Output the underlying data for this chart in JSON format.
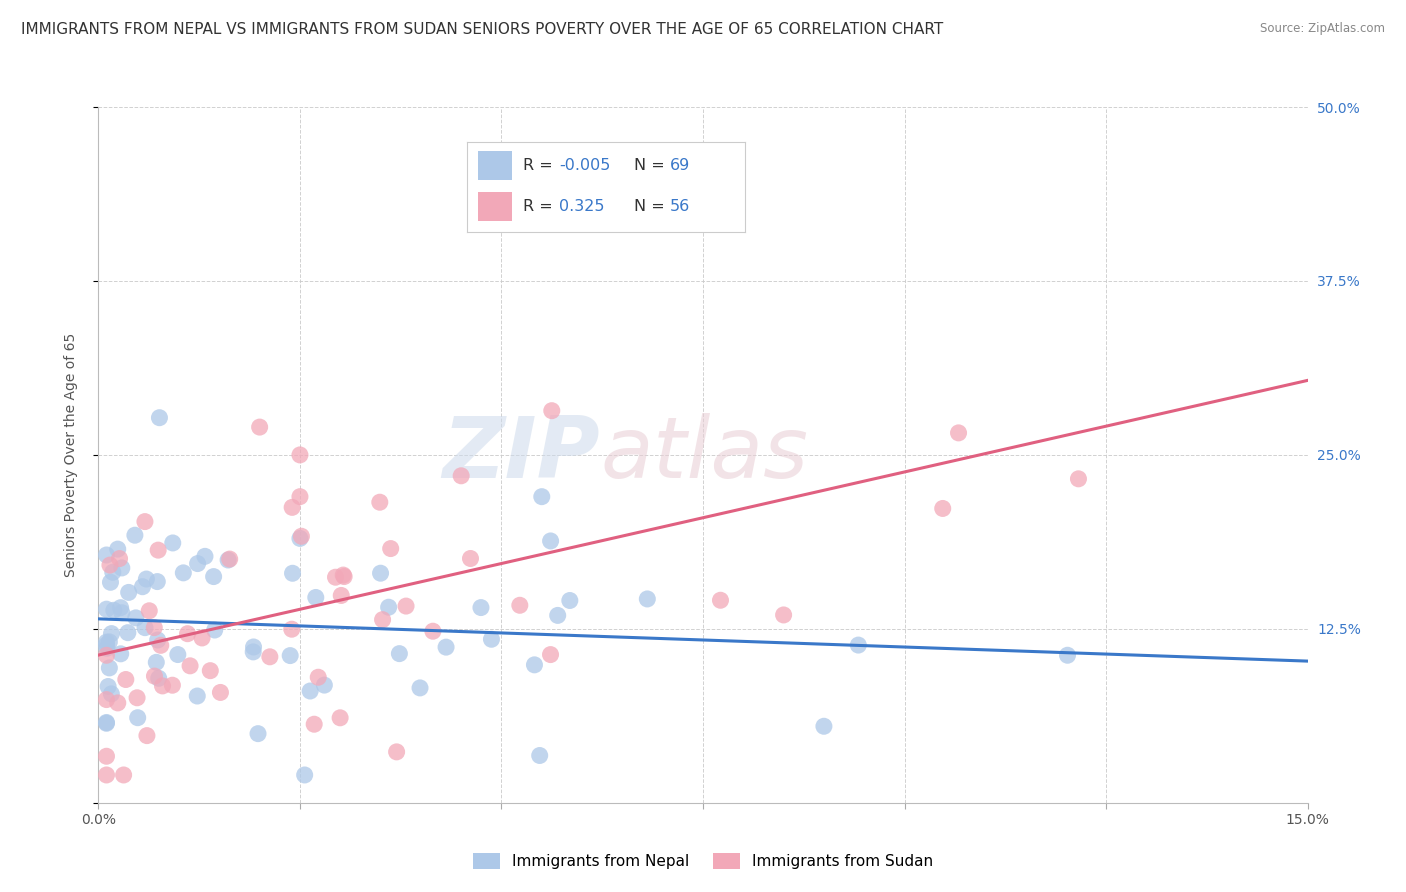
{
  "title": "IMMIGRANTS FROM NEPAL VS IMMIGRANTS FROM SUDAN SENIORS POVERTY OVER THE AGE OF 65 CORRELATION CHART",
  "source": "Source: ZipAtlas.com",
  "ylabel": "Seniors Poverty Over the Age of 65",
  "xlim": [
    0.0,
    0.15
  ],
  "ylim": [
    0.0,
    0.5
  ],
  "nepal_color": "#adc8e8",
  "sudan_color": "#f2a8b8",
  "nepal_line_color": "#3a78c9",
  "sudan_line_color": "#e06080",
  "nepal_R": -0.005,
  "nepal_N": 69,
  "sudan_R": 0.325,
  "sudan_N": 56,
  "legend_R_color": "#3a78c9",
  "legend_N_color": "#3a78c9",
  "legend_label_color": "#333333",
  "watermark_zip_color": "#d8e4f0",
  "watermark_atlas_color": "#e8d8dc",
  "background_color": "#ffffff",
  "grid_color": "#cccccc",
  "title_fontsize": 11,
  "axis_label_fontsize": 10,
  "tick_fontsize": 10,
  "right_tick_color": "#3a78c9"
}
